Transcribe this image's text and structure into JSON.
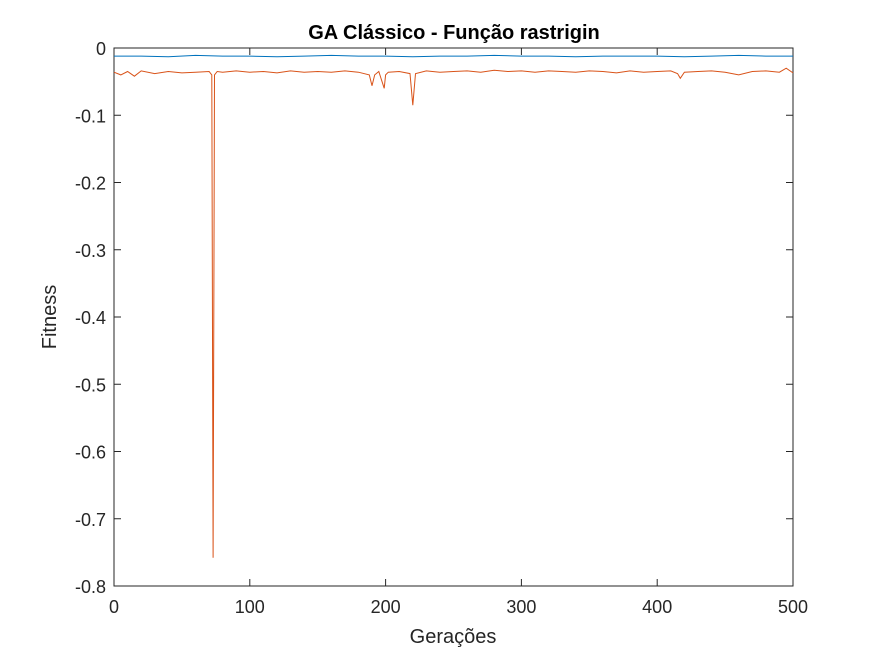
{
  "chart_data": {
    "type": "line",
    "title": "GA Clássico - Função rastrigin",
    "xlabel": "Gerações",
    "ylabel": "Fitness",
    "xlim": [
      0,
      500
    ],
    "ylim": [
      -0.8,
      0
    ],
    "xticks": [
      0,
      100,
      200,
      300,
      400,
      500
    ],
    "xtick_labels": [
      "0",
      "100",
      "200",
      "300",
      "400",
      "500"
    ],
    "yticks": [
      0,
      -0.1,
      -0.2,
      -0.3,
      -0.4,
      -0.5,
      -0.6,
      -0.7,
      -0.8
    ],
    "ytick_labels": [
      "0",
      "-0.1",
      "-0.2",
      "-0.3",
      "-0.4",
      "-0.5",
      "-0.6",
      "-0.7",
      "-0.8"
    ],
    "grid": false,
    "legend": "none",
    "series": [
      {
        "color": "#0072BD",
        "x": [
          0,
          20,
          40,
          60,
          80,
          100,
          120,
          140,
          160,
          180,
          200,
          220,
          240,
          260,
          280,
          300,
          320,
          340,
          360,
          380,
          400,
          420,
          440,
          460,
          480,
          500
        ],
        "y": [
          -0.012,
          -0.012,
          -0.013,
          -0.011,
          -0.012,
          -0.012,
          -0.013,
          -0.012,
          -0.011,
          -0.012,
          -0.012,
          -0.013,
          -0.012,
          -0.012,
          -0.011,
          -0.012,
          -0.012,
          -0.013,
          -0.012,
          -0.012,
          -0.012,
          -0.013,
          -0.012,
          -0.011,
          -0.012,
          -0.012
        ]
      },
      {
        "color": "#D95319",
        "x": [
          0,
          5,
          10,
          15,
          20,
          30,
          40,
          50,
          60,
          70,
          72,
          73,
          74,
          76,
          80,
          90,
          100,
          110,
          120,
          130,
          140,
          150,
          160,
          170,
          180,
          188,
          190,
          192,
          195,
          199,
          200,
          202,
          210,
          218,
          220,
          222,
          230,
          240,
          250,
          260,
          270,
          280,
          290,
          300,
          310,
          320,
          330,
          340,
          350,
          360,
          370,
          380,
          390,
          400,
          410,
          415,
          417,
          420,
          430,
          440,
          450,
          460,
          470,
          480,
          490,
          495,
          500
        ],
        "y": [
          -0.036,
          -0.04,
          -0.035,
          -0.042,
          -0.034,
          -0.038,
          -0.035,
          -0.037,
          -0.036,
          -0.035,
          -0.04,
          -0.758,
          -0.04,
          -0.035,
          -0.036,
          -0.034,
          -0.036,
          -0.035,
          -0.037,
          -0.034,
          -0.036,
          -0.035,
          -0.036,
          -0.034,
          -0.036,
          -0.04,
          -0.056,
          -0.04,
          -0.035,
          -0.06,
          -0.04,
          -0.036,
          -0.035,
          -0.038,
          -0.085,
          -0.038,
          -0.034,
          -0.036,
          -0.035,
          -0.034,
          -0.036,
          -0.033,
          -0.035,
          -0.034,
          -0.036,
          -0.034,
          -0.035,
          -0.036,
          -0.034,
          -0.035,
          -0.037,
          -0.034,
          -0.036,
          -0.035,
          -0.034,
          -0.038,
          -0.045,
          -0.036,
          -0.035,
          -0.034,
          -0.036,
          -0.04,
          -0.035,
          -0.034,
          -0.036,
          -0.03,
          -0.037
        ]
      }
    ]
  }
}
